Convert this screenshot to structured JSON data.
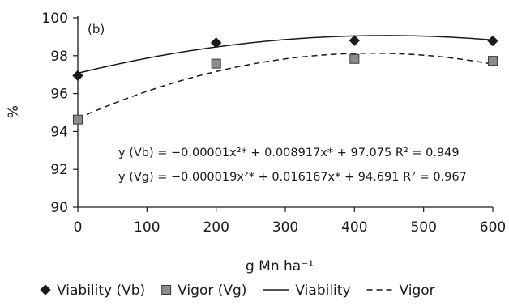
{
  "chart_data": {
    "type": "scatter",
    "panel_label": "(b)",
    "xlabel": "g Mn ha⁻¹",
    "ylabel": "%",
    "xlim": [
      0,
      600
    ],
    "ylim": [
      90,
      100
    ],
    "x_ticks": [
      0,
      100,
      200,
      300,
      400,
      500,
      600
    ],
    "y_ticks": [
      90,
      92,
      94,
      96,
      98,
      100
    ],
    "grid": false,
    "legend_position": "bottom",
    "series": [
      {
        "name": "Viability (Vb)",
        "marker": "diamond",
        "color": "#1a1a1a",
        "x": [
          0,
          200,
          400,
          600
        ],
        "y": [
          96.95,
          98.68,
          98.8,
          98.78
        ]
      },
      {
        "name": "Vigor (Vg)",
        "marker": "square",
        "color": "#8c8c8c",
        "x": [
          0,
          200,
          400,
          600
        ],
        "y": [
          94.63,
          97.58,
          97.83,
          97.73
        ]
      }
    ],
    "fits": [
      {
        "name": "Viability",
        "line_style": "solid",
        "a": -1e-05,
        "b": 0.008917,
        "c": 97.075,
        "equation": "y (Vb) = −0.00001x²* + 0.008917x* + 97.075  R² = 0.949"
      },
      {
        "name": "Vigor",
        "line_style": "dashed",
        "a": -1.9e-05,
        "b": 0.016167,
        "c": 94.691,
        "equation": "y (Vg) = −0.000019x²* + 0.016167x* + 94.691  R² = 0.967"
      }
    ]
  }
}
